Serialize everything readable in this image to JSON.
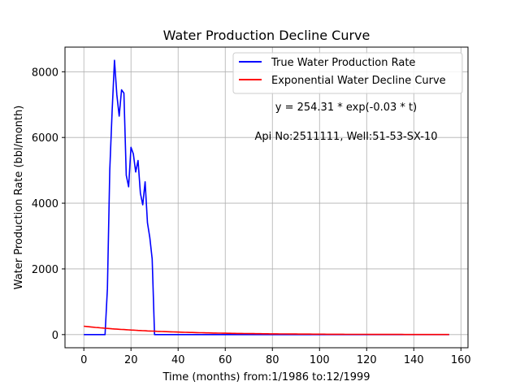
{
  "chart_data": {
    "type": "line",
    "title": "Water Production Decline Curve",
    "xlabel": "Time (months) from:1/1986 to:12/1999",
    "ylabel": "Water Production Rate (bbl/month)",
    "xlim": [
      -8,
      163
    ],
    "ylim": [
      -400,
      8750
    ],
    "xticks": [
      0,
      20,
      40,
      60,
      80,
      100,
      120,
      140,
      160
    ],
    "yticks": [
      0,
      2000,
      4000,
      6000,
      8000
    ],
    "grid": true,
    "legend_position": "top-right",
    "annotations": [
      "y = 254.31 * exp(-0.03 * t)",
      "Api No:2511111, Well:51-53-SX-10"
    ],
    "series": [
      {
        "name": "True Water Production Rate",
        "color": "#0000ff",
        "x": [
          0,
          9,
          10,
          11,
          12,
          13,
          14,
          15,
          16,
          17,
          18,
          19,
          20,
          21,
          22,
          23,
          24,
          25,
          26,
          27,
          28,
          29,
          30,
          31,
          155
        ],
        "y": [
          0,
          0,
          1400,
          5000,
          6800,
          8350,
          7300,
          6650,
          7450,
          7350,
          4850,
          4500,
          5700,
          5500,
          4950,
          5300,
          4300,
          3950,
          4650,
          3400,
          2950,
          2300,
          0,
          0,
          0
        ]
      },
      {
        "name": "Exponential Water Decline Curve",
        "color": "#ff0000",
        "type": "exponential",
        "a": 254.31,
        "b": -0.03,
        "x_range": [
          0,
          155
        ]
      }
    ]
  }
}
